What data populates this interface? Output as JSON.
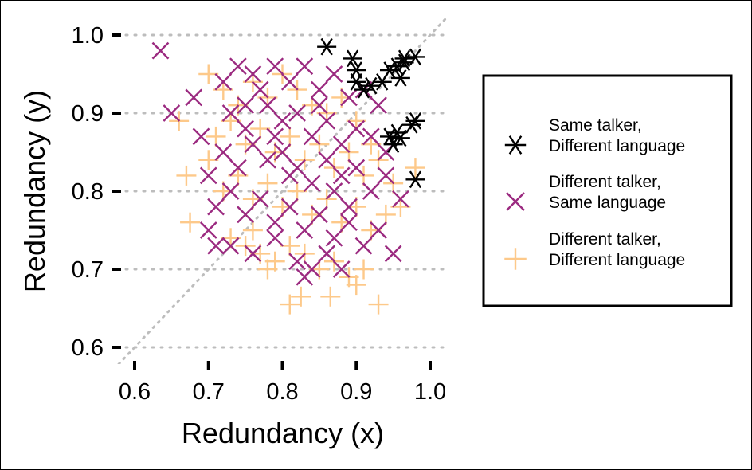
{
  "chart_data": {
    "type": "scatter",
    "xlabel": "Redundancy (x)",
    "ylabel": "Redundancy (y)",
    "xlim": [
      0.57,
      1.02
    ],
    "ylim": [
      0.57,
      1.02
    ],
    "x_ticks": [
      "0.6",
      "0.7",
      "0.8",
      "0.9",
      "1.0"
    ],
    "y_ticks": [
      "0.6",
      "0.7",
      "0.8",
      "0.9",
      "1.0"
    ],
    "grid": "horizontal dotted",
    "reference_line": "y = x (dotted)",
    "legend_position": "right",
    "series": [
      {
        "name": "Same talker,\nDifferent language",
        "color": "#000000",
        "marker": "asterisk",
        "points": [
          [
            0.86,
            0.985
          ],
          [
            0.895,
            0.97
          ],
          [
            0.98,
            0.972
          ],
          [
            0.965,
            0.97
          ],
          [
            0.955,
            0.96
          ],
          [
            0.945,
            0.955
          ],
          [
            0.965,
            0.965
          ],
          [
            0.935,
            0.94
          ],
          [
            0.92,
            0.935
          ],
          [
            0.91,
            0.93
          ],
          [
            0.9,
            0.955
          ],
          [
            0.96,
            0.945
          ],
          [
            0.975,
            0.885
          ],
          [
            0.98,
            0.89
          ],
          [
            0.955,
            0.875
          ],
          [
            0.945,
            0.87
          ],
          [
            0.96,
            0.868
          ],
          [
            0.95,
            0.86
          ],
          [
            0.98,
            0.815
          ],
          [
            0.9,
            0.94
          ]
        ]
      },
      {
        "name": "Different talker,\nSame language",
        "color": "#9b2a80",
        "marker": "x",
        "points": [
          [
            0.635,
            0.98
          ],
          [
            0.65,
            0.9
          ],
          [
            0.68,
            0.92
          ],
          [
            0.72,
            0.94
          ],
          [
            0.74,
            0.96
          ],
          [
            0.76,
            0.95
          ],
          [
            0.79,
            0.96
          ],
          [
            0.81,
            0.94
          ],
          [
            0.83,
            0.96
          ],
          [
            0.85,
            0.93
          ],
          [
            0.87,
            0.95
          ],
          [
            0.89,
            0.92
          ],
          [
            0.91,
            0.93
          ],
          [
            0.73,
            0.9
          ],
          [
            0.75,
            0.88
          ],
          [
            0.78,
            0.91
          ],
          [
            0.8,
            0.89
          ],
          [
            0.82,
            0.9
          ],
          [
            0.84,
            0.87
          ],
          [
            0.86,
            0.89
          ],
          [
            0.88,
            0.86
          ],
          [
            0.9,
            0.88
          ],
          [
            0.92,
            0.87
          ],
          [
            0.94,
            0.85
          ],
          [
            0.7,
            0.82
          ],
          [
            0.72,
            0.85
          ],
          [
            0.74,
            0.83
          ],
          [
            0.76,
            0.86
          ],
          [
            0.78,
            0.84
          ],
          [
            0.8,
            0.85
          ],
          [
            0.82,
            0.83
          ],
          [
            0.84,
            0.81
          ],
          [
            0.86,
            0.84
          ],
          [
            0.88,
            0.82
          ],
          [
            0.9,
            0.83
          ],
          [
            0.92,
            0.8
          ],
          [
            0.94,
            0.82
          ],
          [
            0.96,
            0.79
          ],
          [
            0.71,
            0.78
          ],
          [
            0.73,
            0.8
          ],
          [
            0.75,
            0.77
          ],
          [
            0.77,
            0.79
          ],
          [
            0.79,
            0.76
          ],
          [
            0.81,
            0.78
          ],
          [
            0.83,
            0.75
          ],
          [
            0.85,
            0.77
          ],
          [
            0.87,
            0.74
          ],
          [
            0.89,
            0.76
          ],
          [
            0.91,
            0.73
          ],
          [
            0.93,
            0.75
          ],
          [
            0.95,
            0.72
          ],
          [
            0.73,
            0.73
          ],
          [
            0.76,
            0.72
          ],
          [
            0.79,
            0.74
          ],
          [
            0.82,
            0.71
          ],
          [
            0.84,
            0.7
          ],
          [
            0.86,
            0.72
          ],
          [
            0.88,
            0.7
          ],
          [
            0.83,
            0.69
          ],
          [
            0.7,
            0.75
          ],
          [
            0.69,
            0.87
          ],
          [
            0.77,
            0.93
          ],
          [
            0.85,
            0.91
          ],
          [
            0.93,
            0.91
          ],
          [
            0.71,
            0.73
          ],
          [
            0.87,
            0.8
          ],
          [
            0.81,
            0.82
          ],
          [
            0.79,
            0.87
          ],
          [
            0.75,
            0.91
          ],
          [
            0.89,
            0.78
          ]
        ]
      },
      {
        "name": "Different talker,\nDifferent language",
        "color": "#fdc98a",
        "marker": "plus",
        "points": [
          [
            0.66,
            0.89
          ],
          [
            0.67,
            0.82
          ],
          [
            0.675,
            0.76
          ],
          [
            0.7,
            0.95
          ],
          [
            0.72,
            0.93
          ],
          [
            0.74,
            0.91
          ],
          [
            0.76,
            0.94
          ],
          [
            0.78,
            0.92
          ],
          [
            0.8,
            0.95
          ],
          [
            0.82,
            0.93
          ],
          [
            0.84,
            0.91
          ],
          [
            0.86,
            0.9
          ],
          [
            0.88,
            0.92
          ],
          [
            0.9,
            0.89
          ],
          [
            0.71,
            0.87
          ],
          [
            0.73,
            0.89
          ],
          [
            0.75,
            0.86
          ],
          [
            0.77,
            0.88
          ],
          [
            0.79,
            0.85
          ],
          [
            0.81,
            0.87
          ],
          [
            0.83,
            0.84
          ],
          [
            0.85,
            0.86
          ],
          [
            0.87,
            0.83
          ],
          [
            0.89,
            0.85
          ],
          [
            0.91,
            0.82
          ],
          [
            0.93,
            0.84
          ],
          [
            0.95,
            0.81
          ],
          [
            0.98,
            0.83
          ],
          [
            0.72,
            0.8
          ],
          [
            0.74,
            0.82
          ],
          [
            0.76,
            0.79
          ],
          [
            0.78,
            0.81
          ],
          [
            0.8,
            0.78
          ],
          [
            0.82,
            0.8
          ],
          [
            0.84,
            0.77
          ],
          [
            0.86,
            0.79
          ],
          [
            0.88,
            0.76
          ],
          [
            0.9,
            0.78
          ],
          [
            0.92,
            0.75
          ],
          [
            0.94,
            0.77
          ],
          [
            0.96,
            0.78
          ],
          [
            0.73,
            0.74
          ],
          [
            0.75,
            0.73
          ],
          [
            0.77,
            0.72
          ],
          [
            0.79,
            0.71
          ],
          [
            0.81,
            0.73
          ],
          [
            0.83,
            0.72
          ],
          [
            0.85,
            0.7
          ],
          [
            0.87,
            0.71
          ],
          [
            0.89,
            0.69
          ],
          [
            0.91,
            0.7
          ],
          [
            0.81,
            0.655
          ],
          [
            0.825,
            0.665
          ],
          [
            0.865,
            0.665
          ],
          [
            0.93,
            0.655
          ],
          [
            0.9,
            0.68
          ],
          [
            0.78,
            0.7
          ],
          [
            0.76,
            0.75
          ],
          [
            0.7,
            0.84
          ],
          [
            0.92,
            0.86
          ]
        ]
      }
    ]
  }
}
